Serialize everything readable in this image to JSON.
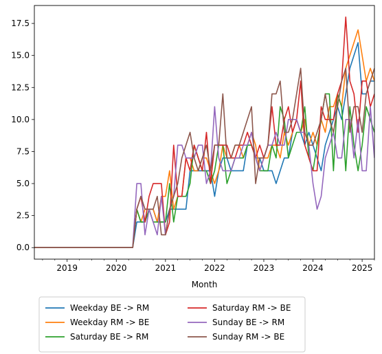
{
  "chart_data": {
    "type": "line",
    "xlabel": "Month",
    "ylabel": "",
    "title": "",
    "x_tick_labels": [
      "2019",
      "2020",
      "2021",
      "2022",
      "2023",
      "2024",
      "2025"
    ],
    "y_tick_labels": [
      "0.0",
      "2.5",
      "5.0",
      "7.5",
      "10.0",
      "12.5",
      "15.0",
      "17.5"
    ],
    "xlim": [
      "2018-05",
      "2025-04"
    ],
    "ylim": [
      -0.9,
      18.9
    ],
    "legend": {
      "placement": "below",
      "columns": 2
    },
    "months": [
      "2018-05",
      "2018-06",
      "2018-07",
      "2018-08",
      "2018-09",
      "2018-10",
      "2018-11",
      "2018-12",
      "2019-01",
      "2019-02",
      "2019-03",
      "2019-04",
      "2019-05",
      "2019-06",
      "2019-07",
      "2019-08",
      "2019-09",
      "2019-10",
      "2019-11",
      "2019-12",
      "2020-01",
      "2020-02",
      "2020-03",
      "2020-04",
      "2020-05",
      "2020-06",
      "2020-07",
      "2020-08",
      "2020-09",
      "2020-10",
      "2020-11",
      "2020-12",
      "2021-01",
      "2021-02",
      "2021-03",
      "2021-04",
      "2021-05",
      "2021-06",
      "2021-07",
      "2021-08",
      "2021-09",
      "2021-10",
      "2021-11",
      "2021-12",
      "2022-01",
      "2022-02",
      "2022-03",
      "2022-04",
      "2022-05",
      "2022-06",
      "2022-07",
      "2022-08",
      "2022-09",
      "2022-10",
      "2022-11",
      "2022-12",
      "2023-01",
      "2023-02",
      "2023-03",
      "2023-04",
      "2023-05",
      "2023-06",
      "2023-07",
      "2023-08",
      "2023-09",
      "2023-10",
      "2023-11",
      "2023-12",
      "2024-01",
      "2024-02",
      "2024-03",
      "2024-04",
      "2024-05",
      "2024-06",
      "2024-07",
      "2024-08",
      "2024-09",
      "2024-10",
      "2024-11",
      "2024-12",
      "2025-01",
      "2025-02",
      "2025-03",
      "2025-04"
    ],
    "series": [
      {
        "name": "Weekday BE -> RM",
        "color": "#1f77b4",
        "values": [
          0,
          0,
          0,
          0,
          0,
          0,
          0,
          0,
          0,
          0,
          0,
          0,
          0,
          0,
          0,
          0,
          0,
          0,
          0,
          0,
          0,
          0,
          0,
          0,
          0,
          2,
          2,
          2,
          3,
          3,
          2,
          2,
          2,
          3,
          3,
          3,
          3,
          3,
          6,
          6,
          6,
          6,
          6,
          6,
          4,
          6,
          7,
          7,
          6,
          6,
          6,
          6,
          8,
          8,
          7,
          7,
          6,
          6,
          6,
          5,
          6,
          7,
          7,
          9,
          10,
          9,
          8,
          9,
          8,
          7,
          6,
          8,
          9,
          10,
          11,
          10,
          12,
          14,
          15,
          16,
          12,
          12,
          13,
          13
        ]
      },
      {
        "name": "Weekday RM -> BE",
        "color": "#ff7f0e",
        "values": [
          0,
          0,
          0,
          0,
          0,
          0,
          0,
          0,
          0,
          0,
          0,
          0,
          0,
          0,
          0,
          0,
          0,
          0,
          0,
          0,
          0,
          0,
          0,
          0,
          0,
          3,
          2,
          3,
          3,
          3,
          2,
          4,
          4,
          6,
          3,
          4,
          4,
          7,
          7,
          6,
          6,
          7,
          7,
          6,
          5,
          6,
          8,
          7,
          7,
          8,
          8,
          7,
          8,
          9,
          8,
          6,
          7,
          7,
          8,
          8,
          7,
          9,
          8,
          9,
          10,
          9,
          10,
          8,
          9,
          8,
          10,
          9,
          11,
          11,
          12,
          11,
          14,
          15,
          16,
          17,
          15,
          13,
          14,
          13
        ]
      },
      {
        "name": "Saturday BE -> RM",
        "color": "#2ca02c",
        "values": [
          0,
          0,
          0,
          0,
          0,
          0,
          0,
          0,
          0,
          0,
          0,
          0,
          0,
          0,
          0,
          0,
          0,
          0,
          0,
          0,
          0,
          0,
          0,
          0,
          0,
          3,
          2,
          2,
          3,
          2,
          2,
          2,
          2,
          5,
          2,
          4,
          4,
          4,
          5,
          8,
          7,
          6,
          6,
          5,
          6,
          8,
          8,
          5,
          6,
          7,
          7,
          7,
          8,
          8,
          7,
          6,
          6,
          6,
          8,
          7,
          11,
          10,
          7,
          8,
          9,
          9,
          11,
          7,
          6,
          8,
          10,
          12,
          12,
          6,
          12,
          11,
          6,
          11,
          8,
          6,
          8,
          11,
          10,
          9
        ]
      },
      {
        "name": "Saturday RM -> BE",
        "color": "#d62728",
        "values": [
          0,
          0,
          0,
          0,
          0,
          0,
          0,
          0,
          0,
          0,
          0,
          0,
          0,
          0,
          0,
          0,
          0,
          0,
          0,
          0,
          0,
          0,
          0,
          0,
          0,
          3,
          4,
          2,
          4,
          5,
          5,
          5,
          1,
          2,
          8,
          4,
          4,
          7,
          6,
          8,
          7,
          6,
          9,
          5,
          8,
          8,
          8,
          8,
          7,
          7,
          8,
          8,
          9,
          8,
          7,
          8,
          7,
          8,
          11,
          8,
          8,
          10,
          11,
          9,
          10,
          13,
          8,
          7,
          6,
          6,
          11,
          10,
          10,
          10,
          12,
          13,
          18,
          13,
          12,
          9,
          13,
          13,
          11,
          12
        ]
      },
      {
        "name": "Sunday BE -> RM",
        "color": "#9467bd",
        "values": [
          0,
          0,
          0,
          0,
          0,
          0,
          0,
          0,
          0,
          0,
          0,
          0,
          0,
          0,
          0,
          0,
          0,
          0,
          0,
          0,
          0,
          0,
          0,
          0,
          0,
          5,
          5,
          1,
          3,
          2,
          1,
          4,
          1,
          3,
          4,
          8,
          8,
          7,
          7,
          7,
          8,
          8,
          5,
          6,
          11,
          7,
          6,
          6,
          6,
          7,
          7,
          8,
          8,
          9,
          7,
          6,
          7,
          8,
          8,
          9,
          8,
          8,
          10,
          10,
          10,
          9,
          9,
          8,
          5,
          3,
          4,
          7,
          8,
          9,
          7,
          7,
          10,
          10,
          7,
          10,
          6,
          6,
          11,
          7
        ]
      },
      {
        "name": "Sunday RM -> BE",
        "color": "#8c564b",
        "values": [
          0,
          0,
          0,
          0,
          0,
          0,
          0,
          0,
          0,
          0,
          0,
          0,
          0,
          0,
          0,
          0,
          0,
          0,
          0,
          0,
          0,
          0,
          0,
          0,
          0,
          3,
          4,
          3,
          3,
          3,
          4,
          1,
          1,
          3,
          4,
          5,
          7,
          8,
          9,
          7,
          6,
          7,
          8,
          6,
          8,
          8,
          12,
          7,
          7,
          8,
          8,
          9,
          10,
          11,
          5,
          7,
          7,
          8,
          12,
          12,
          13,
          9,
          9,
          10,
          12,
          14,
          9,
          8,
          8,
          9,
          10,
          12,
          10,
          9,
          11,
          13,
          14,
          9,
          11,
          11,
          9,
          12,
          13,
          14
        ]
      }
    ]
  }
}
